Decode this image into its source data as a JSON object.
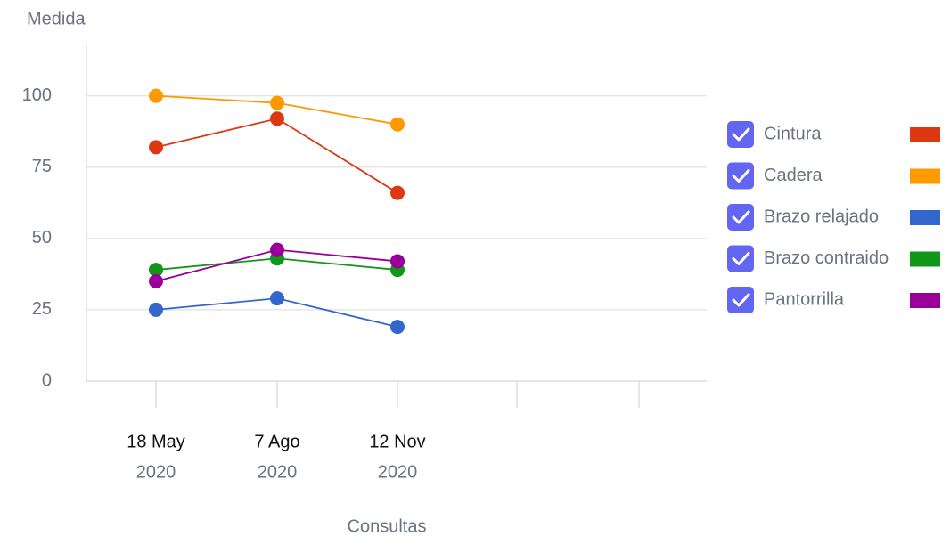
{
  "chart_data": {
    "type": "line",
    "y_axis_label": "Medida",
    "x_axis_label": "Consultas",
    "categories": [
      "18 May",
      "7 Ago",
      "12 Nov",
      null,
      null
    ],
    "category_years": [
      "2020",
      "2020",
      "2020",
      null,
      null
    ],
    "series": [
      {
        "name": "Cintura",
        "color": "#dc3912",
        "values": [
          82,
          92,
          66,
          null,
          null
        ]
      },
      {
        "name": "Cadera",
        "color": "#ff9900",
        "values": [
          100,
          97.5,
          90,
          null,
          null
        ]
      },
      {
        "name": "Brazo relajado",
        "color": "#3366cc",
        "values": [
          25,
          29,
          19,
          null,
          null
        ]
      },
      {
        "name": "Brazo contraido",
        "color": "#109618",
        "values": [
          39,
          43,
          39,
          null,
          null
        ]
      },
      {
        "name": "Pantorrilla",
        "color": "#990099",
        "values": [
          35,
          46,
          42,
          null,
          null
        ]
      }
    ],
    "ylim": [
      0,
      118
    ],
    "yticks": [
      0,
      25,
      50,
      75,
      100
    ],
    "grid": true,
    "legend": "right"
  }
}
